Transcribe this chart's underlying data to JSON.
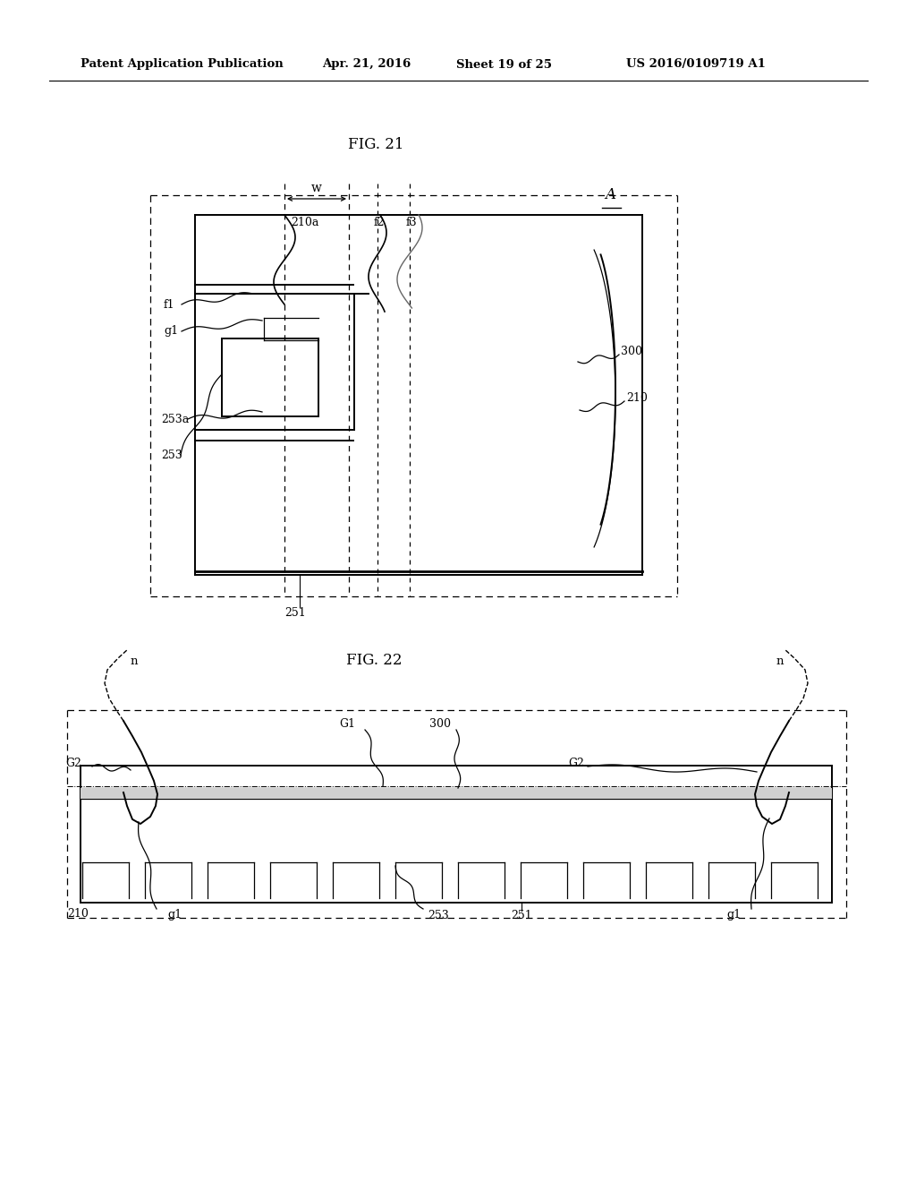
{
  "header_left": "Patent Application Publication",
  "header_mid1": "Apr. 21, 2016",
  "header_mid2": "Sheet 19 of 25",
  "header_right": "US 2016/0109719 A1",
  "fig21_title": "FIG. 21",
  "fig22_title": "FIG. 22",
  "bg_color": "#ffffff",
  "lc": "#000000",
  "lc_gray": "#666666"
}
